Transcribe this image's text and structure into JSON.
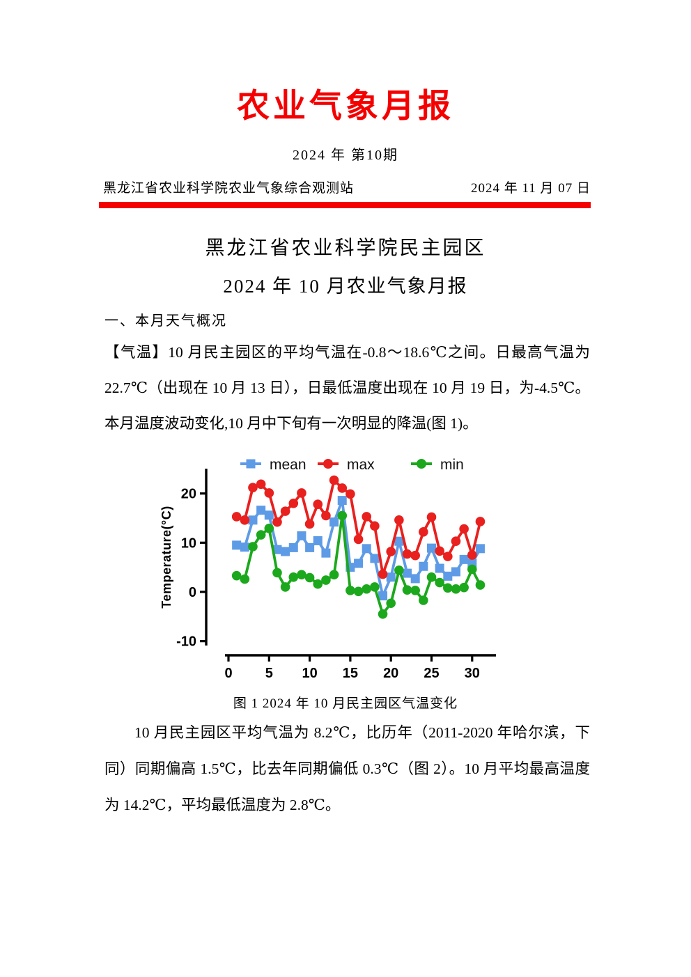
{
  "header": {
    "title": "农业气象月报",
    "issue": "2024 年 第10期",
    "station": "黑龙江省农业科学院农业气象综合观测站",
    "date": "2024 年 11 月 07 日"
  },
  "body": {
    "heading_park": "黑龙江省农业科学院民主园区",
    "heading_month": "2024 年 10 月农业气象月报",
    "section1_title": "一、本月天气概况",
    "para_temperature": "【气温】10 月民主园区的平均气温在-0.8～18.6℃之间。日最高气温为 22.7℃（出现在 10 月 13 日），日最低温度出现在 10 月 19 日，为-4.5℃。本月温度波动变化,10 月中下旬有一次明显的降温(图 1)。",
    "para_summary": "10 月民主园区平均气温为 8.2℃，比历年（2011-2020 年哈尔滨，下同）同期偏高 1.5℃，比去年同期偏低 0.3℃（图 2）。10 月平均最高温度为 14.2℃，平均最低温度为 2.8℃。"
  },
  "colors": {
    "accent_red": "#f40000",
    "series_mean": "#5e9be6",
    "series_max": "#e8201e",
    "series_min": "#1ca81c"
  },
  "chart_data": {
    "type": "line",
    "title": "图 1 2024 年 10 月民主园区气温变化",
    "xlabel": "",
    "ylabel": "Temperature(°C)",
    "x": [
      1,
      2,
      3,
      4,
      5,
      6,
      7,
      8,
      9,
      10,
      11,
      12,
      13,
      14,
      15,
      16,
      17,
      18,
      19,
      20,
      21,
      22,
      23,
      24,
      25,
      26,
      27,
      28,
      29,
      30,
      31
    ],
    "xticks": [
      0,
      5,
      10,
      15,
      20,
      25,
      30
    ],
    "yticks": [
      -10,
      0,
      10,
      20
    ],
    "xlim": [
      0,
      32
    ],
    "ylim": [
      -11,
      25
    ],
    "grid": false,
    "legend_position": "top",
    "series": [
      {
        "name": "mean",
        "marker": "square",
        "color": "#5e9be6",
        "values": [
          9.5,
          9.1,
          14.6,
          16.6,
          15.6,
          8.6,
          8.2,
          9.0,
          11.4,
          9.0,
          10.4,
          7.9,
          14.2,
          18.6,
          5.0,
          5.8,
          8.8,
          6.8,
          -0.8,
          3.0,
          10.3,
          3.8,
          2.7,
          5.2,
          8.9,
          4.8,
          3.2,
          4.1,
          6.6,
          5.8,
          8.8
        ]
      },
      {
        "name": "max",
        "marker": "circle",
        "color": "#e8201e",
        "values": [
          15.3,
          14.6,
          21.2,
          21.9,
          20.1,
          14.2,
          16.4,
          18.0,
          20.1,
          13.8,
          17.8,
          15.5,
          22.7,
          21.1,
          19.9,
          10.7,
          15.3,
          13.4,
          3.6,
          8.2,
          14.6,
          7.7,
          7.4,
          12.2,
          15.2,
          8.3,
          7.2,
          10.3,
          12.8,
          7.5,
          14.3
        ]
      },
      {
        "name": "min",
        "marker": "circle",
        "color": "#1ca81c",
        "values": [
          3.3,
          2.6,
          9.2,
          11.6,
          12.9,
          3.9,
          1.0,
          3.0,
          3.5,
          2.9,
          1.6,
          2.4,
          3.5,
          15.5,
          0.3,
          0.1,
          0.6,
          1.0,
          -4.5,
          -2.3,
          4.4,
          0.4,
          0.3,
          -1.7,
          3.0,
          1.9,
          0.8,
          0.6,
          0.9,
          4.6,
          1.4
        ]
      }
    ]
  }
}
